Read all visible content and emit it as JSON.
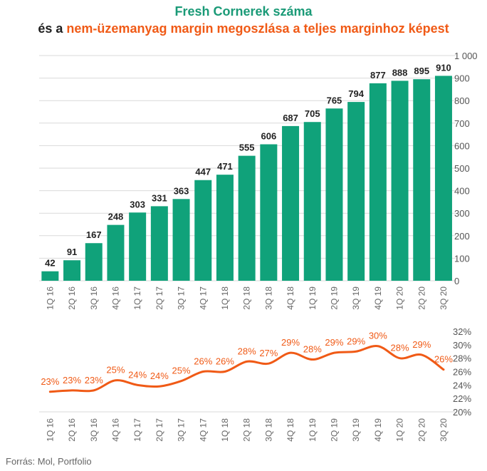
{
  "title": {
    "line1": "Fresh Cornerek száma",
    "line2_prefix": "és a ",
    "line2_highlight": "nem-üzemanyag margin megoszlása a teljes marginhoz képest"
  },
  "source": "Forrás: Mol, Portfolio",
  "colors": {
    "bar": "#10a27a",
    "line": "#f05a16",
    "title_green": "#1a9a77"
  },
  "chart_data": [
    {
      "type": "bar",
      "categories": [
        "1Q 16",
        "2Q 16",
        "3Q 16",
        "4Q 16",
        "1Q 17",
        "2Q 17",
        "3Q 17",
        "4Q 17",
        "1Q 18",
        "2Q 18",
        "3Q 18",
        "4Q 18",
        "1Q 19",
        "2Q 19",
        "3Q 19",
        "4Q 19",
        "1Q 20",
        "2Q 20",
        "3Q 20"
      ],
      "values": [
        42,
        91,
        167,
        248,
        303,
        331,
        363,
        447,
        471,
        555,
        606,
        687,
        705,
        765,
        794,
        877,
        888,
        895,
        910
      ],
      "value_labels": [
        "42",
        "91",
        "167",
        "248",
        "303",
        "331",
        "363",
        "447",
        "471",
        "555",
        "606",
        "687",
        "705",
        "765",
        "794",
        "877",
        "888",
        "895",
        "910"
      ],
      "ylim": [
        0,
        1000
      ],
      "yticks": [
        0,
        100,
        200,
        300,
        400,
        500,
        600,
        700,
        800,
        900,
        1000
      ],
      "ytick_labels": [
        "0",
        "100",
        "200",
        "300",
        "400",
        "500",
        "600",
        "700",
        "800",
        "900",
        "1 000"
      ],
      "grid": true,
      "y_axis_side": "right"
    },
    {
      "type": "line",
      "categories": [
        "1Q 16",
        "2Q 16",
        "3Q 16",
        "4Q 16",
        "1Q 17",
        "2Q 17",
        "3Q 17",
        "4Q 17",
        "1Q 18",
        "2Q 18",
        "3Q 18",
        "4Q 18",
        "1Q 19",
        "2Q 19",
        "3Q 19",
        "4Q 19",
        "1Q 20",
        "2Q 20",
        "3Q 20"
      ],
      "values": [
        23,
        23.2,
        23.2,
        24.7,
        24,
        23.8,
        24.6,
        26,
        26,
        27.5,
        27.2,
        28.8,
        27.8,
        28.8,
        29,
        29.8,
        28,
        28.5,
        26.3
      ],
      "value_labels": [
        "23%",
        "23%",
        "23%",
        "25%",
        "24%",
        "24%",
        "25%",
        "26%",
        "26%",
        "28%",
        "27%",
        "29%",
        "28%",
        "29%",
        "29%",
        "30%",
        "28%",
        "29%",
        "26%"
      ],
      "ylim": [
        20,
        32
      ],
      "yticks": [
        20,
        22,
        24,
        26,
        28,
        30,
        32
      ],
      "ytick_labels": [
        "20%",
        "22%",
        "24%",
        "26%",
        "28%",
        "30%",
        "32%"
      ],
      "grid": false,
      "y_axis_side": "right"
    }
  ]
}
